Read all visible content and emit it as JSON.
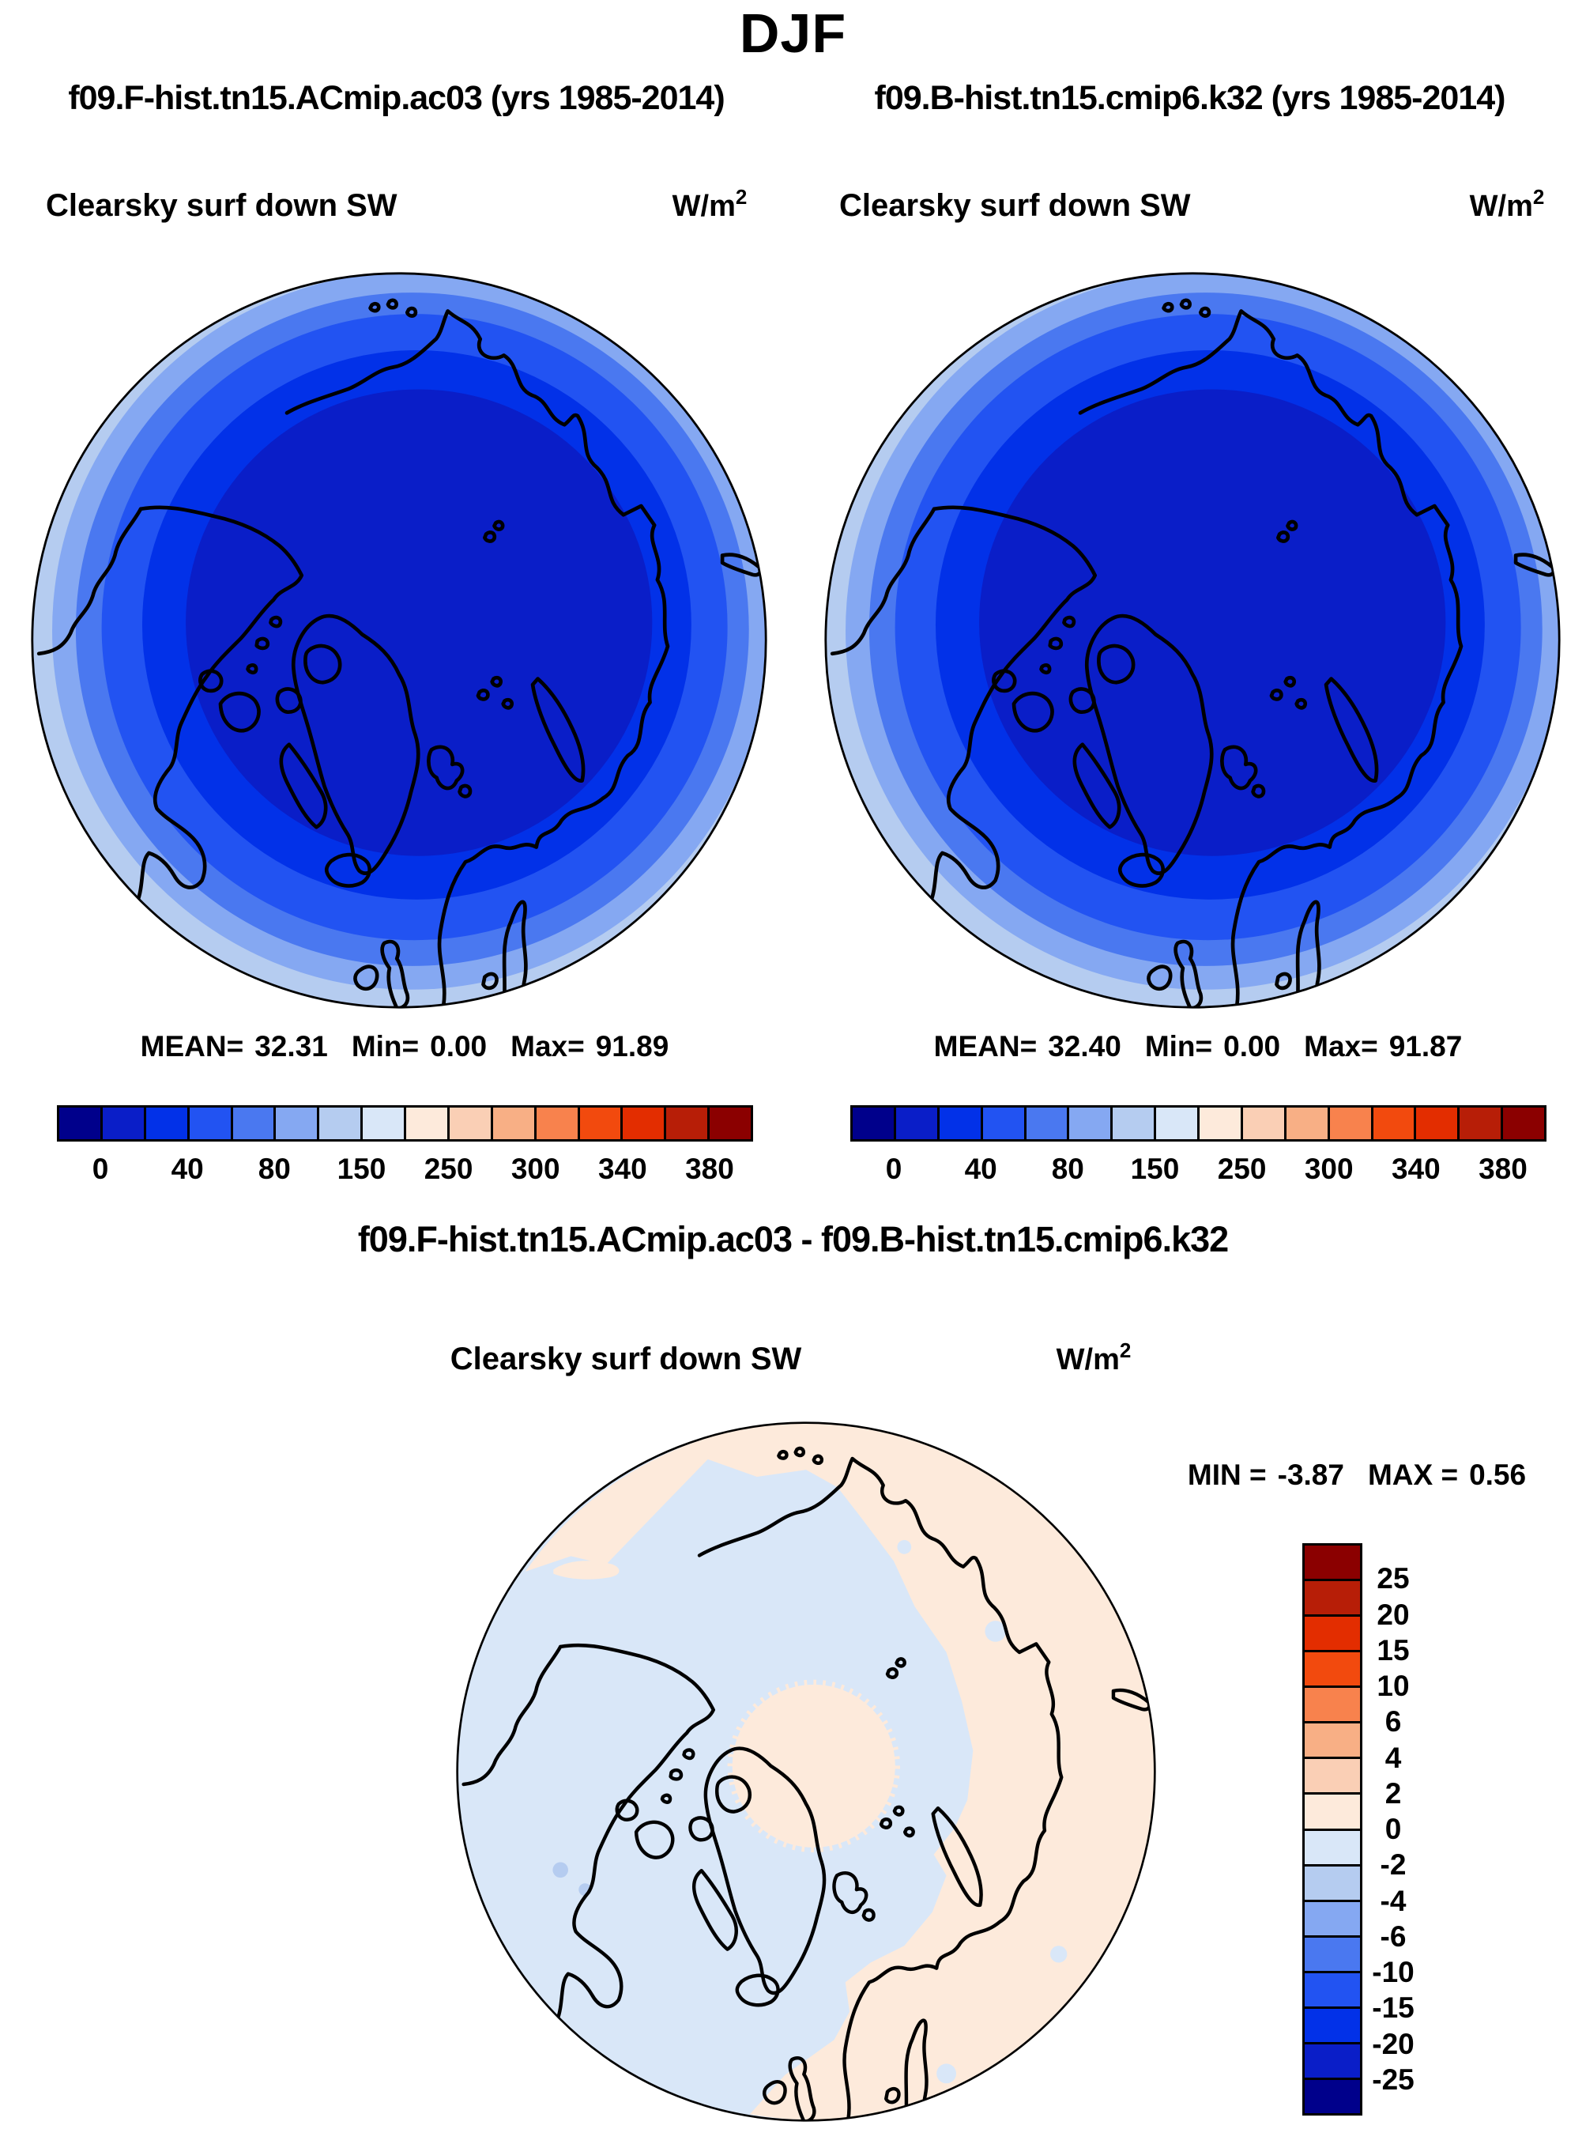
{
  "title": "DJF",
  "runs": {
    "left": "f09.F-hist.tn15.ACmip.ac03 (yrs 1985-2014)",
    "right": "f09.B-hist.tn15.cmip6.k32 (yrs 1985-2014)"
  },
  "palette": [
    "#00008B",
    "#0A1EC8",
    "#0231E8",
    "#2253F2",
    "#4A78F0",
    "#85A8F2",
    "#B5CCF0",
    "#D9E7F8",
    "#FDEADB",
    "#FACFB5",
    "#F8AF85",
    "#F8824D",
    "#F24A0E",
    "#E32D00",
    "#B71E07",
    "#8B0000"
  ],
  "coast_color": "#000000",
  "panel_left": {
    "variable": "Clearsky surf down SW",
    "units_base": "W/m",
    "units_exp": "2",
    "stats": {
      "mean_label": "MEAN=",
      "mean": "32.31",
      "min_label": "Min=",
      "min": "0.00",
      "max_label": "Max=",
      "max": "91.89"
    },
    "colorbar_labels": [
      "0",
      "40",
      "80",
      "150",
      "250",
      "300",
      "340",
      "380"
    ]
  },
  "panel_right": {
    "variable": "Clearsky surf down SW",
    "units_base": "W/m",
    "units_exp": "2",
    "stats": {
      "mean_label": "MEAN=",
      "mean": "32.40",
      "min_label": "Min=",
      "min": "0.00",
      "max_label": "Max=",
      "max": "91.87"
    },
    "colorbar_labels": [
      "0",
      "40",
      "80",
      "150",
      "250",
      "300",
      "340",
      "380"
    ]
  },
  "diff": {
    "title": "f09.F-hist.tn15.ACmip.ac03 - f09.B-hist.tn15.cmip6.k32",
    "variable": "Clearsky surf down SW",
    "units_base": "W/m",
    "units_exp": "2",
    "stats": {
      "min_label": "MIN =",
      "min": "-3.87",
      "max_label": "MAX =",
      "max": "0.56"
    },
    "colorbar_labels": [
      "25",
      "20",
      "15",
      "10",
      "6",
      "4",
      "2",
      "0",
      "-2",
      "-4",
      "-6",
      "-10",
      "-15",
      "-20",
      "-25"
    ]
  },
  "chart_data": [
    {
      "type": "heatmap",
      "title": "f09.F-hist.tn15.ACmip.ac03 (yrs 1985-2014)",
      "season": "DJF",
      "variable": "Clearsky surf down SW",
      "units": "W/m2",
      "projection": "north-polar-stereographic",
      "stats": {
        "mean": 32.31,
        "min": 0.0,
        "max": 91.89
      },
      "colorbar_tick_labels": [
        0,
        40,
        80,
        150,
        250,
        300,
        340,
        380
      ],
      "legend_position": "bottom",
      "pattern": "concentric zonal bands, lowest values (dark blue, 0-20 W/m2) at pole increasing outward to ~80-150 W/m2 (light blue) at map edge"
    },
    {
      "type": "heatmap",
      "title": "f09.B-hist.tn15.cmip6.k32 (yrs 1985-2014)",
      "season": "DJF",
      "variable": "Clearsky surf down SW",
      "units": "W/m2",
      "projection": "north-polar-stereographic",
      "stats": {
        "mean": 32.4,
        "min": 0.0,
        "max": 91.87
      },
      "colorbar_tick_labels": [
        0,
        40,
        80,
        150,
        250,
        300,
        340,
        380
      ],
      "legend_position": "bottom",
      "pattern": "concentric zonal bands, lowest values (dark blue, 0-20 W/m2) at pole increasing outward to ~80-150 W/m2 (light blue) at map edge"
    },
    {
      "type": "heatmap",
      "title": "f09.F-hist.tn15.ACmip.ac03 - f09.B-hist.tn15.cmip6.k32",
      "season": "DJF",
      "variable": "Clearsky surf down SW",
      "units": "W/m2",
      "projection": "north-polar-stereographic",
      "stats": {
        "min": -3.87,
        "max": 0.56
      },
      "colorbar_tick_labels": [
        25,
        20,
        15,
        10,
        6,
        4,
        2,
        0,
        -2,
        -4,
        -6,
        -10,
        -15,
        -20,
        -25
      ],
      "legend_position": "right",
      "pattern": "mostly -2 to 0 W/m2 (pale blue) over Arctic ocean and North America, 0 to 2 W/m2 (pale peach) over Siberia/Scandinavia sector, map rim and a disc at the pole"
    }
  ]
}
